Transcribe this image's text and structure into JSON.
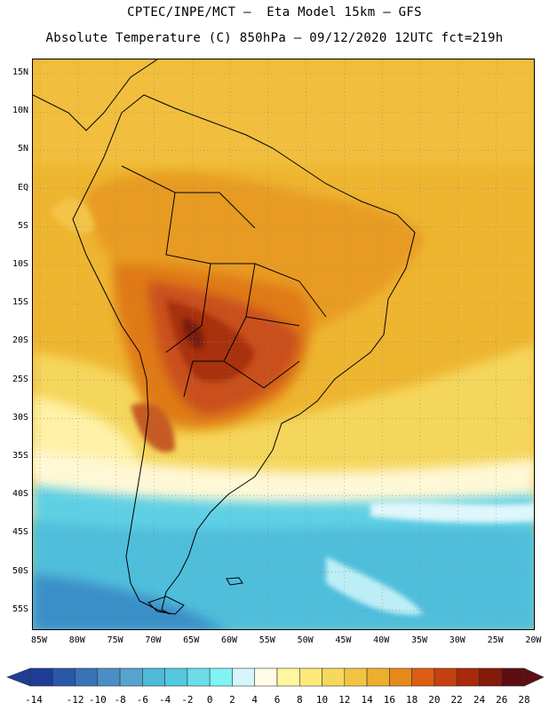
{
  "header": {
    "line1": "CPTEC/INPE/MCT –  Eta Model 15km – GFS",
    "line2": "Absolute Temperature (C) 850hPa – 09/12/2020 12UTC fct=219h"
  },
  "axes": {
    "lat_labels": [
      "15N",
      "10N",
      "5N",
      "EQ",
      "5S",
      "10S",
      "15S",
      "20S",
      "25S",
      "30S",
      "35S",
      "40S",
      "45S",
      "50S",
      "55S"
    ],
    "lon_labels": [
      "85W",
      "80W",
      "75W",
      "70W",
      "65W",
      "60W",
      "55W",
      "50W",
      "45W",
      "40W",
      "35W",
      "30W",
      "25W",
      "20W"
    ]
  },
  "colorbar": {
    "labels": [
      "-14",
      "-12",
      "-10",
      "-8",
      "-6",
      "-4",
      "-2",
      "0",
      "2",
      "4",
      "6",
      "8",
      "10",
      "12",
      "14",
      "16",
      "18",
      "20",
      "22",
      "24",
      "26",
      "28"
    ],
    "colors": [
      "#1f3d96",
      "#2a58a8",
      "#3a72b8",
      "#4b8ec6",
      "#57a3cf",
      "#4fb9d8",
      "#52c9e0",
      "#6cdce8",
      "#7ff4f4",
      "#d6f6fb",
      "#fffbe6",
      "#fff6a0",
      "#fce97a",
      "#f7d85e",
      "#f1c443",
      "#ecae2e",
      "#e6891b",
      "#dc5d13",
      "#c7400f",
      "#a8290c",
      "#851a0a",
      "#5e0d11"
    ]
  },
  "map": {
    "region": "South America",
    "field": "850hPa temperature (C)",
    "hot_core_label": "heat maximum over central South America"
  }
}
